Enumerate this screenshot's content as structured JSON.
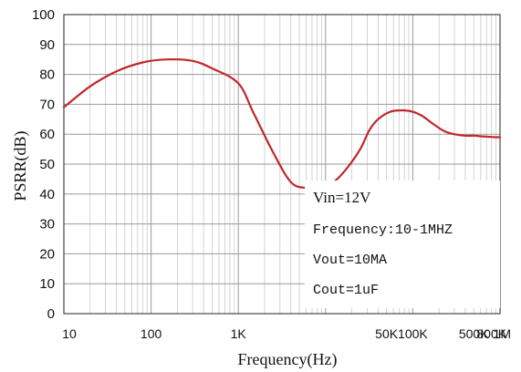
{
  "chart_data": {
    "type": "line",
    "title": "",
    "xlabel": "Frequency(Hz)",
    "ylabel": "PSRR(dB)",
    "x_scale": "log",
    "xlim": [
      10,
      1000000
    ],
    "ylim": [
      0,
      100
    ],
    "grid": true,
    "y_ticks": [
      0,
      10,
      20,
      30,
      40,
      50,
      60,
      70,
      80,
      90,
      100
    ],
    "x_tick_labels": [
      {
        "value": 10,
        "label": "10"
      },
      {
        "value": 100,
        "label": "100"
      },
      {
        "value": 1000,
        "label": "1K"
      },
      {
        "value": 50000,
        "label": "50K"
      },
      {
        "value": 100000,
        "label": "100K"
      },
      {
        "value": 500000,
        "label": "500K"
      },
      {
        "value": 800000,
        "label": "800K"
      },
      {
        "value": 1000000,
        "label": "1M"
      }
    ],
    "series": [
      {
        "color": "#c0272d",
        "x": [
          10,
          20,
          40,
          80,
          150,
          300,
          500,
          1000,
          1500,
          2500,
          4000,
          6000,
          9000,
          13000,
          18000,
          25000,
          32000,
          40000,
          55000,
          75000,
          100000,
          130000,
          170000,
          230000,
          300000,
          400000,
          500000,
          600000,
          700000,
          800000,
          900000,
          1000000
        ],
        "y": [
          69,
          76,
          81,
          84,
          85,
          84.5,
          82,
          77,
          67,
          54,
          44,
          42,
          42,
          44.5,
          49,
          55,
          61.5,
          65,
          67.5,
          68,
          67.5,
          66,
          63.5,
          61,
          60,
          59.5,
          59.5,
          59.3,
          59.2,
          59.1,
          59,
          59
        ]
      }
    ],
    "legend": "none",
    "annotations": [
      "Vin=12V",
      "Frequency:10-1MHZ",
      "Vout=10MA",
      "Cout=1uF"
    ]
  }
}
